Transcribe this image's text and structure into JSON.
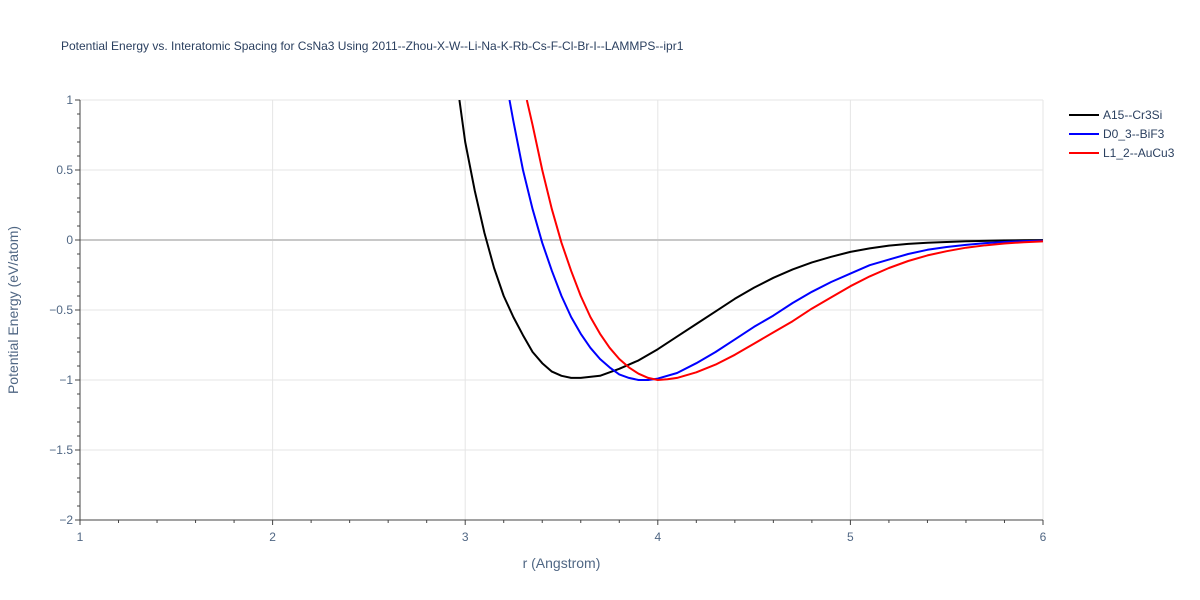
{
  "chart_data": {
    "type": "line",
    "title": "Potential Energy vs. Interatomic Spacing for CsNa3 Using 2011--Zhou-X-W--Li-Na-K-Rb-Cs-F-Cl-Br-I--LAMMPS--ipr1",
    "xlabel": "r (Angstrom)",
    "ylabel": "Potential Energy (eV/atom)",
    "xlim": [
      1,
      6
    ],
    "ylim": [
      -2,
      1
    ],
    "x_ticks": [
      "1",
      "2",
      "3",
      "4",
      "5",
      "6"
    ],
    "y_ticks": [
      "1",
      "0.5",
      "0",
      "−0.5",
      "−1",
      "−1.5",
      "−2"
    ],
    "x_tick_values": [
      1,
      2,
      3,
      4,
      5,
      6
    ],
    "y_tick_values": [
      1,
      0.5,
      0,
      -0.5,
      -1,
      -1.5,
      -2
    ],
    "grid": true,
    "legend_position": "top-right",
    "series": [
      {
        "name": "A15--Cr3Si",
        "color": "#000000",
        "x": [
          2.97,
          3.0,
          3.05,
          3.1,
          3.15,
          3.2,
          3.25,
          3.3,
          3.35,
          3.4,
          3.45,
          3.5,
          3.55,
          3.6,
          3.7,
          3.8,
          3.9,
          4.0,
          4.1,
          4.2,
          4.3,
          4.4,
          4.5,
          4.6,
          4.7,
          4.8,
          4.9,
          5.0,
          5.1,
          5.2,
          5.3,
          5.4,
          5.5,
          5.6,
          5.7,
          5.8,
          5.9,
          6.0
        ],
        "y": [
          1.0,
          0.7,
          0.35,
          0.05,
          -0.2,
          -0.4,
          -0.55,
          -0.68,
          -0.8,
          -0.88,
          -0.94,
          -0.97,
          -0.985,
          -0.985,
          -0.97,
          -0.92,
          -0.86,
          -0.78,
          -0.69,
          -0.6,
          -0.51,
          -0.42,
          -0.34,
          -0.27,
          -0.21,
          -0.16,
          -0.12,
          -0.085,
          -0.06,
          -0.04,
          -0.028,
          -0.02,
          -0.014,
          -0.009,
          -0.006,
          -0.004,
          -0.002,
          -0.001
        ]
      },
      {
        "name": "D0_3--BiF3",
        "color": "#0000ff",
        "x": [
          3.23,
          3.25,
          3.3,
          3.35,
          3.4,
          3.45,
          3.5,
          3.55,
          3.6,
          3.65,
          3.7,
          3.75,
          3.8,
          3.85,
          3.9,
          3.95,
          4.0,
          4.1,
          4.2,
          4.3,
          4.4,
          4.5,
          4.6,
          4.7,
          4.8,
          4.9,
          5.0,
          5.1,
          5.2,
          5.3,
          5.4,
          5.5,
          5.6,
          5.7,
          5.8,
          5.9,
          6.0
        ],
        "y": [
          1.0,
          0.85,
          0.5,
          0.22,
          -0.02,
          -0.22,
          -0.4,
          -0.55,
          -0.67,
          -0.77,
          -0.85,
          -0.91,
          -0.96,
          -0.985,
          -1.0,
          -1.0,
          -0.99,
          -0.95,
          -0.88,
          -0.8,
          -0.71,
          -0.62,
          -0.54,
          -0.45,
          -0.37,
          -0.3,
          -0.24,
          -0.18,
          -0.14,
          -0.1,
          -0.07,
          -0.05,
          -0.035,
          -0.022,
          -0.014,
          -0.008,
          -0.005
        ]
      },
      {
        "name": "L1_2--AuCu3",
        "color": "#ff0000",
        "x": [
          3.32,
          3.35,
          3.4,
          3.45,
          3.5,
          3.55,
          3.6,
          3.65,
          3.7,
          3.75,
          3.8,
          3.85,
          3.9,
          3.95,
          4.0,
          4.05,
          4.1,
          4.2,
          4.3,
          4.4,
          4.5,
          4.6,
          4.7,
          4.8,
          4.9,
          5.0,
          5.1,
          5.2,
          5.3,
          5.4,
          5.5,
          5.6,
          5.7,
          5.8,
          5.9,
          6.0
        ],
        "y": [
          1.0,
          0.82,
          0.5,
          0.22,
          -0.02,
          -0.22,
          -0.4,
          -0.55,
          -0.67,
          -0.77,
          -0.85,
          -0.91,
          -0.955,
          -0.985,
          -1.0,
          -0.995,
          -0.985,
          -0.945,
          -0.89,
          -0.82,
          -0.74,
          -0.66,
          -0.58,
          -0.49,
          -0.41,
          -0.33,
          -0.26,
          -0.2,
          -0.15,
          -0.11,
          -0.08,
          -0.055,
          -0.038,
          -0.025,
          -0.016,
          -0.01
        ]
      }
    ]
  }
}
